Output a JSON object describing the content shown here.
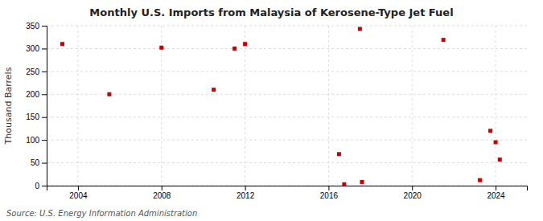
{
  "chart_data": {
    "type": "scatter",
    "title": "Monthly U.S. Imports from Malaysia of Kerosene-Type Jet Fuel",
    "ylabel": "Thousand Barrels",
    "annotation": "Source: U.S. Energy Information Administration",
    "x": [
      2003.25,
      2005.5,
      2008.0,
      2010.5,
      2011.5,
      2012.0,
      2016.5,
      2016.75,
      2017.5,
      2017.6,
      2021.5,
      2023.25,
      2023.75,
      2024.0,
      2024.2
    ],
    "values": [
      310,
      200,
      302,
      210,
      300,
      310,
      69,
      3,
      343,
      8,
      319,
      12,
      120,
      95,
      57
    ],
    "color": "#cc0000",
    "marker": "square",
    "xlim": [
      2002.5,
      2025.5
    ],
    "ylim": [
      0,
      350
    ],
    "xticks": [
      2004,
      2008,
      2012,
      2016,
      2020,
      2024
    ],
    "yticks": [
      0,
      50,
      100,
      150,
      200,
      250,
      300,
      350
    ],
    "grid": true
  }
}
